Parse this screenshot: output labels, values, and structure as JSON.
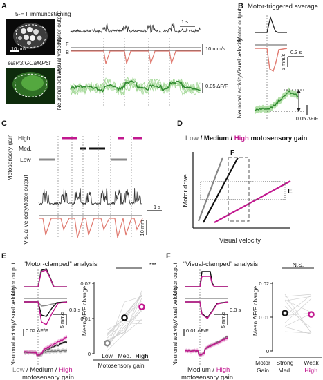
{
  "colors": {
    "magenta": "#c2188f",
    "salmon": "#e07a70",
    "green": "#3a9a3a",
    "light_green": "#a6d99a",
    "gray": "#888888",
    "black": "#222222"
  },
  "panel_a": {
    "letter": "A",
    "image_top_label": "5-HT immunostaining",
    "image_top_scalebar": "10 μm",
    "image_bottom_label": "elavl3:GCaMP6f",
    "row_labels": [
      "Motor output",
      "Visual velocity",
      "Neuronal activity"
    ],
    "arrow_labels": [
      "F",
      "B"
    ],
    "time_scale": "1 s",
    "velocity_scale": "10 mm/s",
    "activity_scale": "0.05 ΔF/F"
  },
  "panel_b": {
    "letter": "B",
    "title": "Motor-triggered average",
    "row_labels": [
      "Motor output",
      "Visual velocity",
      "Neuronal activity"
    ],
    "time_scale": "0.3 s",
    "velocity_scale": "5 mm/s",
    "activity_scale": "0.05 ΔF/F"
  },
  "panel_c": {
    "letter": "C",
    "gain_axis_label": "Motosensory gain",
    "gain_levels": [
      "High",
      "Med.",
      "Low"
    ],
    "row_labels": [
      "Motor output",
      "Visual velocity"
    ],
    "time_scale": "1 s",
    "velocity_scale": "10 mm"
  },
  "panel_d": {
    "letter": "D",
    "title_parts": [
      "Low",
      " / ",
      "Medium",
      " / ",
      "High",
      " motosensory gain"
    ],
    "y_label": "Motor drive",
    "x_label": "Visual velocity",
    "box_labels": [
      "F",
      "E"
    ]
  },
  "panel_e": {
    "letter": "E",
    "title": "“Motor-clamped” analysis",
    "row_labels": [
      "Motor output",
      "Visual velocity",
      "Neuronal activity"
    ],
    "time_scale": "0.3 s",
    "velocity_scale": "5 mm/s",
    "activity_scale": "0.02 ΔF/F",
    "legend_parts": [
      "Low",
      " / ",
      "Medium",
      " / ",
      "High"
    ],
    "legend_line2": "motosensory gain",
    "significance": "***",
    "xlabel": "Motosensory gain"
  },
  "panel_f": {
    "letter": "F",
    "title": "“Visual-clamped” analysis",
    "row_labels": [
      "Motor output",
      "Visual velocity",
      "Neuronal activity"
    ],
    "time_scale": "0.3 s",
    "velocity_scale": "5 mm/s",
    "activity_scale": "0.01 ΔF/F",
    "legend_parts": [
      "Medium",
      " / ",
      "High"
    ],
    "legend_line2": "motosensory gain",
    "significance": "N.S.",
    "xlabel_left": [
      "Motor",
      "Gain"
    ],
    "xlabel_groups": [
      [
        "Strong",
        "Med."
      ],
      [
        "Weak",
        "High"
      ]
    ]
  },
  "chart_data": [
    {
      "type": "scatter",
      "panel": "E",
      "ylabel": "Mean ΔF/F change",
      "xlabel": "Motosensory gain",
      "categories": [
        "Low",
        "Med.",
        "High"
      ],
      "ylim": [
        0,
        0.02
      ],
      "yticks": [
        0,
        0.01,
        0.02
      ],
      "series": [
        {
          "name": "Low",
          "mean": 0.003
        },
        {
          "name": "Med.",
          "mean": 0.0102
        },
        {
          "name": "High",
          "mean": 0.0133
        }
      ]
    },
    {
      "type": "scatter",
      "panel": "F",
      "ylabel": "Mean ΔF/F change",
      "xlabel": "Motor Gain",
      "categories": [
        "Strong Med.",
        "Weak High"
      ],
      "ylim": [
        0,
        0.02
      ],
      "yticks": [
        0,
        0.01,
        0.02
      ],
      "series": [
        {
          "name": "Strong Med.",
          "mean": 0.0112
        },
        {
          "name": "Weak High",
          "mean": 0.0108
        }
      ]
    }
  ]
}
